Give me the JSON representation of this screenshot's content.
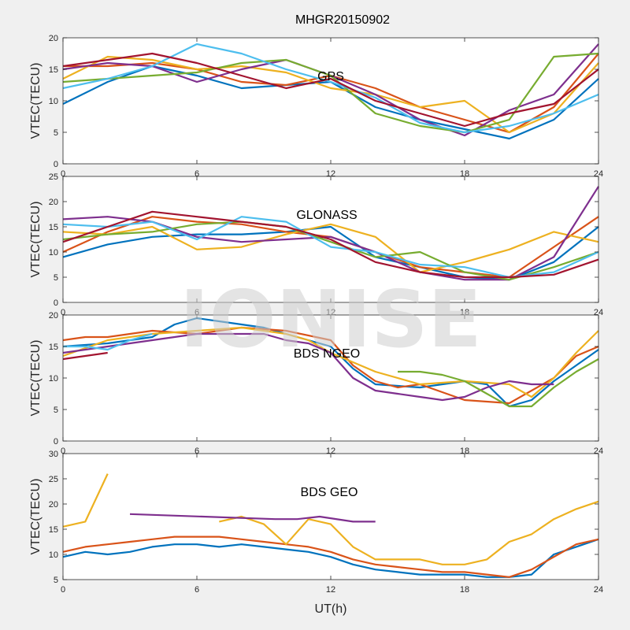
{
  "figure": {
    "title": "MHGR20150902",
    "watermark": "IONISE",
    "xlabel": "UT(h)"
  },
  "colors": [
    "#0072bd",
    "#d95319",
    "#edb120",
    "#7e2f8e",
    "#77ac30",
    "#4dbeee",
    "#a2142f"
  ],
  "chart_data": [
    {
      "type": "line",
      "panel_label": "GPS",
      "ylabel": "VTEC(TECU)",
      "xlim": [
        0,
        24
      ],
      "ylim": [
        0,
        20
      ],
      "xticks": [
        0,
        6,
        12,
        18,
        24
      ],
      "yticks": [
        0,
        5,
        10,
        15,
        20
      ],
      "series": [
        {
          "x": [
            0,
            2,
            4,
            6,
            8,
            10,
            12,
            14,
            16,
            18,
            20,
            22,
            24
          ],
          "y": [
            9.5,
            13,
            15.5,
            14,
            12,
            12.5,
            13,
            9,
            7,
            5.5,
            4,
            7,
            13.5
          ]
        },
        {
          "x": [
            0,
            2,
            4,
            6,
            8,
            10,
            12,
            14,
            16,
            18,
            20,
            22,
            24
          ],
          "y": [
            15.5,
            15.5,
            16,
            15,
            13,
            12.5,
            14,
            12,
            9,
            7,
            5,
            9,
            17.5
          ]
        },
        {
          "x": [
            0,
            2,
            4,
            6,
            8,
            10,
            12,
            14,
            16,
            18,
            20,
            22,
            24
          ],
          "y": [
            13.5,
            17,
            16.5,
            15,
            15.5,
            14.5,
            12,
            11,
            9,
            10,
            5,
            8,
            16
          ]
        },
        {
          "x": [
            0,
            2,
            4,
            6,
            8,
            10,
            12,
            14,
            16,
            18,
            20,
            22,
            24
          ],
          "y": [
            15,
            16,
            15.5,
            13,
            15,
            16.5,
            14,
            11,
            7,
            4.5,
            8.5,
            11,
            19
          ]
        },
        {
          "x": [
            0,
            2,
            4,
            6,
            8,
            10,
            12,
            14,
            16,
            18,
            20,
            22,
            24
          ],
          "y": [
            13,
            13.5,
            14,
            14.5,
            16,
            16.5,
            14,
            8,
            6,
            5,
            7,
            17,
            17.5
          ]
        },
        {
          "x": [
            0,
            2,
            4,
            6,
            8,
            10,
            12,
            14,
            16,
            18,
            20,
            22,
            24
          ],
          "y": [
            12,
            13.5,
            15.5,
            19,
            17.5,
            15,
            13,
            10.5,
            6.5,
            5,
            6,
            8,
            11
          ]
        },
        {
          "x": [
            0,
            2,
            4,
            6,
            8,
            10,
            12,
            14,
            16,
            18,
            20,
            22,
            24
          ],
          "y": [
            15.5,
            16.5,
            17.5,
            16,
            14,
            12,
            13.5,
            10,
            8,
            6,
            8,
            9.5,
            15
          ]
        }
      ]
    },
    {
      "type": "line",
      "panel_label": "GLONASS",
      "ylabel": "VTEC(TECU)",
      "xlim": [
        0,
        24
      ],
      "ylim": [
        0,
        25
      ],
      "xticks": [
        0,
        6,
        12,
        18,
        24
      ],
      "yticks": [
        0,
        5,
        10,
        15,
        20,
        25
      ],
      "series": [
        {
          "x": [
            0,
            2,
            4,
            6,
            8,
            10,
            12,
            14,
            16,
            18,
            20,
            22,
            24
          ],
          "y": [
            9,
            11.5,
            13,
            13.5,
            13.5,
            14,
            15,
            9,
            7,
            5,
            4.5,
            8,
            15
          ]
        },
        {
          "x": [
            0,
            2,
            4,
            6,
            8,
            10,
            12,
            14,
            16,
            18,
            20,
            22,
            24
          ],
          "y": [
            10,
            14,
            17,
            16,
            15.5,
            14,
            13,
            10,
            7,
            6,
            5,
            11,
            17
          ]
        },
        {
          "x": [
            0,
            2,
            4,
            6,
            8,
            10,
            12,
            14,
            16,
            18,
            20,
            22,
            24
          ],
          "y": [
            14,
            13.5,
            15,
            10.5,
            11,
            13.5,
            15.5,
            13,
            6,
            8,
            10.5,
            14,
            12
          ]
        },
        {
          "x": [
            0,
            2,
            4,
            6,
            8,
            10,
            12,
            14,
            16,
            18,
            20,
            22,
            24
          ],
          "y": [
            16.5,
            17,
            16,
            13,
            12,
            12.5,
            13,
            10,
            6,
            4.5,
            4.5,
            9,
            23
          ]
        },
        {
          "x": [
            0,
            2,
            4,
            6,
            8,
            10,
            12,
            14,
            16,
            18,
            20,
            22,
            24
          ],
          "y": [
            12.5,
            13.5,
            14,
            15.5,
            16,
            15,
            12,
            9,
            10,
            6,
            4.5,
            7,
            10
          ]
        },
        {
          "x": [
            0,
            2,
            4,
            6,
            8,
            10,
            12,
            14,
            16,
            18,
            20,
            22,
            24
          ],
          "y": [
            15.5,
            15,
            16,
            12.5,
            17,
            16,
            11,
            10,
            7.5,
            7,
            5,
            6,
            10
          ]
        },
        {
          "x": [
            0,
            2,
            4,
            6,
            8,
            10,
            12,
            14,
            16,
            18,
            20,
            22,
            24
          ],
          "y": [
            12,
            15,
            18,
            17,
            16,
            15,
            12.5,
            8,
            6,
            5,
            5,
            5.5,
            8.5
          ]
        }
      ]
    },
    {
      "type": "line",
      "panel_label": "BDS NGEO",
      "ylabel": "VTEC(TECU)",
      "xlim": [
        0,
        24
      ],
      "ylim": [
        0,
        20
      ],
      "xticks": [
        0,
        6,
        12,
        18,
        24
      ],
      "yticks": [
        0,
        5,
        10,
        15,
        20
      ],
      "series": [
        {
          "x": [
            0,
            2,
            4,
            5,
            6,
            7,
            8,
            9,
            10,
            11,
            12,
            13,
            14,
            16,
            18,
            19,
            20,
            21,
            22,
            23,
            24
          ],
          "y": [
            15,
            15.5,
            16.5,
            18.5,
            19.5,
            19,
            18.5,
            18,
            17,
            16,
            15,
            11.5,
            9,
            8.5,
            9.5,
            9,
            5.5,
            6.5,
            9.5,
            12,
            14.5
          ]
        },
        {
          "x": [
            0,
            1,
            2,
            4,
            6,
            8,
            10,
            12,
            13,
            14,
            15,
            16,
            18,
            20,
            22,
            23,
            24
          ],
          "y": [
            16,
            16.5,
            16.5,
            17.5,
            17,
            18,
            17.5,
            16,
            12,
            9.5,
            8.5,
            9,
            6.5,
            6,
            10,
            13.5,
            15
          ]
        },
        {
          "x": [
            0,
            2,
            4,
            6,
            8,
            10,
            11,
            12,
            14,
            16,
            18,
            20,
            21,
            22,
            23,
            24
          ],
          "y": [
            13.5,
            16,
            17,
            17.5,
            18,
            17,
            16,
            14,
            11,
            9,
            9.5,
            9,
            7,
            10,
            14,
            17.5
          ]
        },
        {
          "x": [
            0,
            2,
            4,
            6,
            8,
            9,
            10,
            11,
            12,
            13,
            14,
            15,
            16,
            17,
            18,
            19,
            20,
            21,
            22
          ],
          "y": [
            14,
            15,
            16,
            17,
            17,
            17,
            16,
            15.5,
            14,
            10,
            8,
            7.5,
            7,
            6.5,
            7,
            8.5,
            9.5,
            9,
            9
          ]
        },
        {
          "x": [
            15,
            16,
            17,
            18,
            19,
            20,
            21,
            22,
            23,
            24
          ],
          "y": [
            11,
            11,
            10.5,
            9.5,
            7.5,
            5.5,
            5.5,
            8.5,
            11,
            13
          ]
        },
        {
          "x": [
            0,
            1,
            2,
            3,
            4
          ],
          "y": [
            15,
            15,
            14.5,
            16,
            17
          ]
        },
        {
          "x": [
            0,
            1,
            2
          ],
          "y": [
            13,
            13.5,
            14
          ]
        }
      ]
    },
    {
      "type": "line",
      "panel_label": "BDS GEO",
      "ylabel": "VTEC(TECU)",
      "xlim": [
        0,
        24
      ],
      "ylim": [
        5,
        30
      ],
      "xticks": [
        0,
        6,
        12,
        18,
        24
      ],
      "yticks": [
        5,
        10,
        15,
        20,
        25,
        30
      ],
      "series": [
        {
          "x": [
            0,
            1,
            2,
            3,
            4,
            5,
            6,
            7,
            8,
            9,
            10,
            11,
            12,
            13,
            14,
            15,
            16,
            17,
            18,
            19,
            20,
            21,
            22,
            23,
            24
          ],
          "y": [
            9.5,
            10.5,
            10,
            10.5,
            11.5,
            12,
            12,
            11.5,
            12,
            11.5,
            11,
            10.5,
            9.5,
            8,
            7,
            6.5,
            6,
            6,
            6,
            5.5,
            5.5,
            6,
            10,
            11.5,
            13
          ]
        },
        {
          "x": [
            0,
            1,
            2,
            3,
            4,
            5,
            6,
            7,
            8,
            9,
            10,
            11,
            12,
            13,
            14,
            15,
            16,
            17,
            18,
            19,
            20,
            21,
            22,
            23,
            24
          ],
          "y": [
            10.5,
            11.5,
            12,
            12.5,
            13,
            13.5,
            13.5,
            13.5,
            13,
            12.5,
            12,
            11.5,
            10.5,
            9,
            8,
            7.5,
            7,
            6.5,
            6.5,
            6,
            5.5,
            7,
            9.5,
            12,
            13
          ]
        },
        {
          "x": [
            0,
            1,
            2,
            3,
            4,
            5,
            6,
            7,
            8,
            9,
            10,
            11,
            12,
            13,
            14,
            15,
            16,
            17,
            18,
            19,
            20,
            21,
            22,
            23,
            24
          ],
          "y": [
            15.5,
            16.5,
            26,
            null,
            null,
            null,
            null,
            16.5,
            17.5,
            16,
            12,
            17,
            16,
            11.5,
            9,
            9,
            9,
            8,
            8,
            9,
            12.5,
            14,
            17,
            19,
            20.5
          ]
        },
        {
          "x": [
            3,
            9.5,
            10.5,
            11.5,
            13,
            14
          ],
          "y": [
            18,
            17,
            17,
            17.5,
            16.5,
            16.5
          ]
        }
      ]
    }
  ]
}
